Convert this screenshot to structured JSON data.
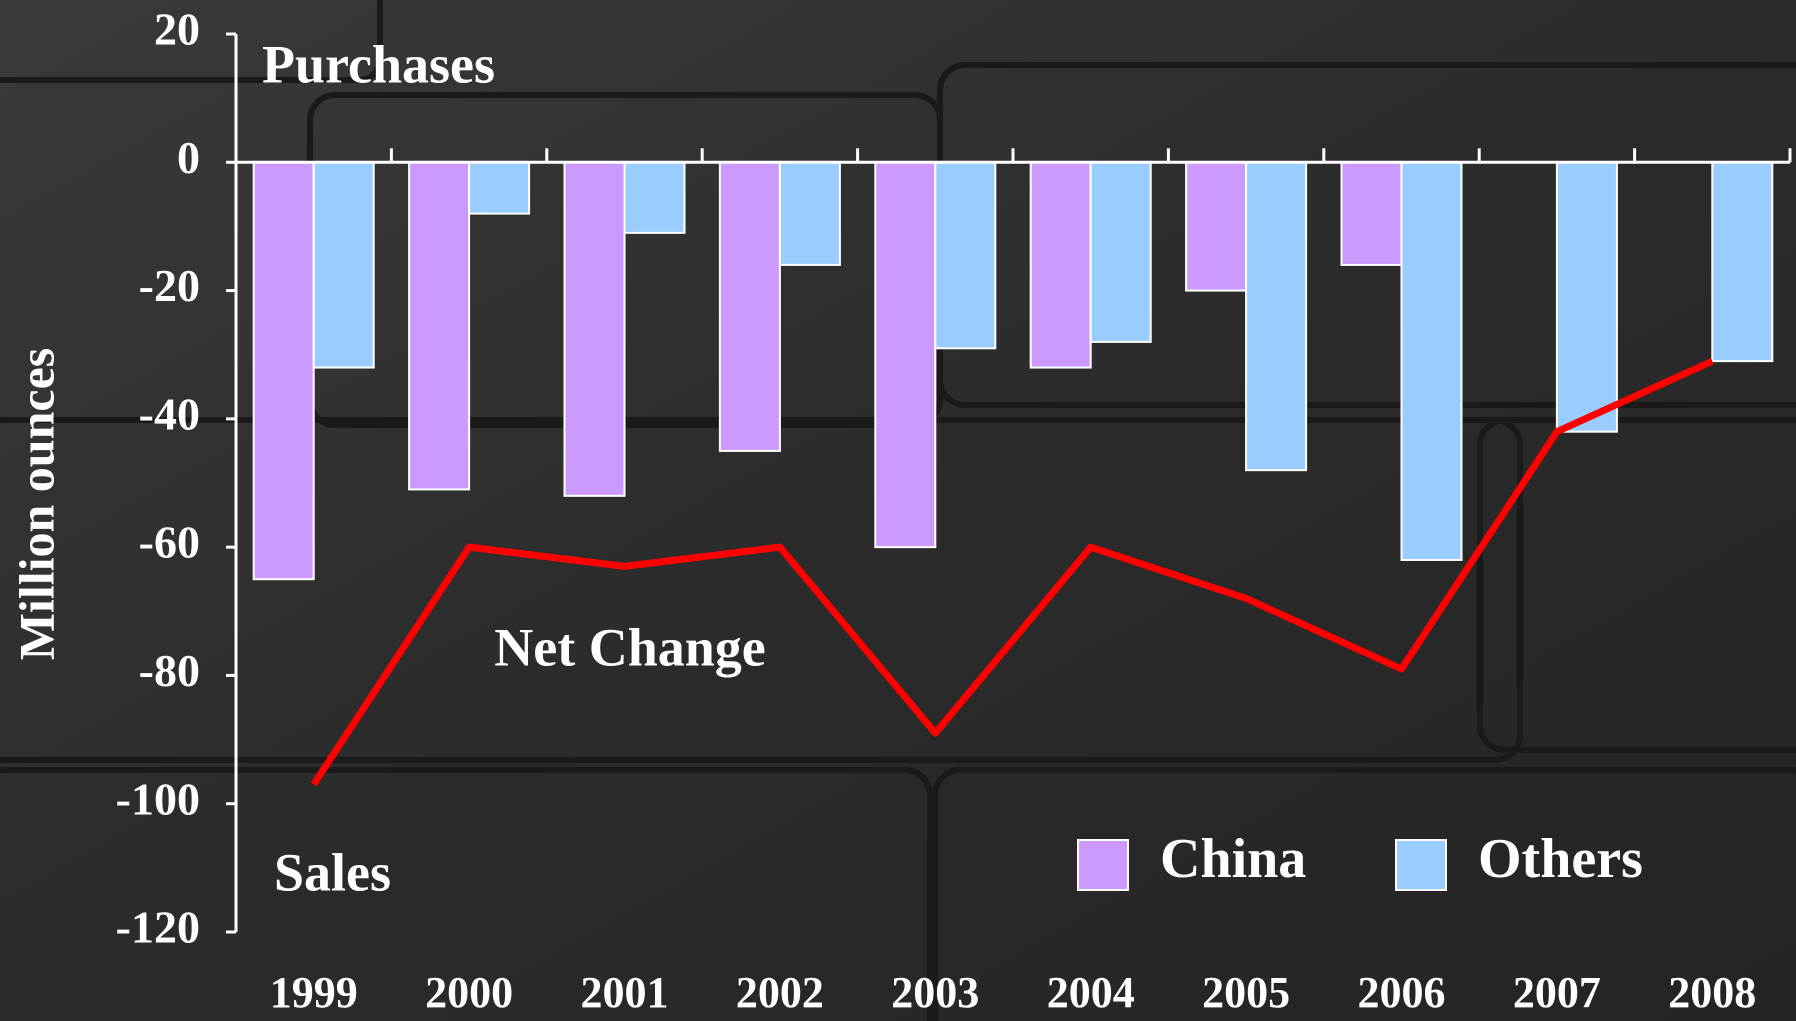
{
  "chart_data": {
    "type": "bar",
    "y_label": "Million ounces",
    "annotations": [
      "Purchases",
      "Sales"
    ],
    "categories": [
      "1999",
      "2000",
      "2001",
      "2002",
      "2003",
      "2004",
      "2005",
      "2006",
      "2007",
      "2008"
    ],
    "series": [
      {
        "name": "China",
        "color": "#cc99ff",
        "values": [
          -65,
          -51,
          -52,
          -45,
          -60,
          -32,
          -20,
          -16,
          null,
          null
        ]
      },
      {
        "name": "Others",
        "color": "#99ccff",
        "values": [
          -32,
          -8,
          -11,
          -16,
          -29,
          -28,
          -48,
          -62,
          -42,
          -31
        ]
      },
      {
        "name": "Net Change",
        "type": "line",
        "color": "#ff0000",
        "values": [
          -97,
          -60,
          -63,
          -60,
          -89,
          -60,
          -68,
          -79,
          -42,
          -31
        ]
      }
    ],
    "ylim": [
      -120,
      20
    ],
    "yticks": [
      -120,
      -100,
      -80,
      -60,
      -40,
      -20,
      0,
      20
    ],
    "legend": "lower right"
  }
}
